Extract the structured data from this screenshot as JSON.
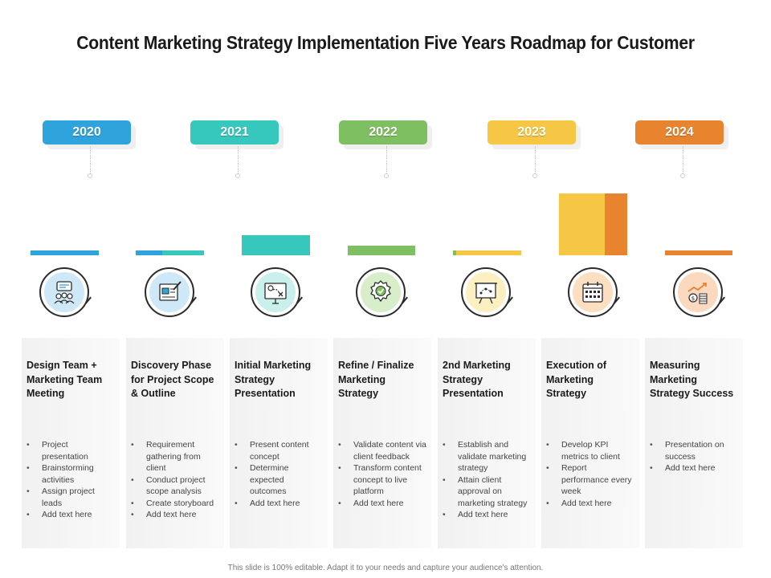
{
  "title": "Content Marketing Strategy Implementation Five Years Roadmap for Customer",
  "footer": "This slide is 100% editable. Adapt it to your needs and capture your audience's attention.",
  "years": [
    {
      "label": "2020",
      "color": "#2fa4dc"
    },
    {
      "label": "2021",
      "color": "#36c7bd"
    },
    {
      "label": "2022",
      "color": "#7ec061"
    },
    {
      "label": "2023",
      "color": "#f6c744"
    },
    {
      "label": "2024",
      "color": "#e8832e"
    }
  ],
  "steps": [
    {
      "icon": "team-meeting-icon",
      "title": "Design Team + Marketing Team Meeting",
      "bullets": [
        "Project presentation",
        "Brainstorming activities",
        "Assign project leads",
        "Add text here"
      ]
    },
    {
      "icon": "blueprint-pencil-icon",
      "title": "Discovery Phase for Project Scope & Outline",
      "bullets": [
        "Requirement gathering from client",
        "Conduct project scope analysis",
        "Create storyboard",
        "Add text here"
      ]
    },
    {
      "icon": "strategy-board-icon",
      "title": "Initial Marketing Strategy Presentation",
      "bullets": [
        "Present content concept",
        "Determine expected outcomes",
        "Add text here"
      ]
    },
    {
      "icon": "approval-badge-icon",
      "title": "Refine / Finalize Marketing Strategy",
      "bullets": [
        "Validate content via client feedback",
        "Transform content concept to live platform",
        "Add text here"
      ]
    },
    {
      "icon": "presentation-board-icon",
      "title": "2nd Marketing Strategy Presentation",
      "bullets": [
        "Establish and validate marketing strategy",
        "Attain client approval on marketing strategy",
        "Add text here"
      ]
    },
    {
      "icon": "calendar-icon",
      "title": "Execution of Marketing Strategy",
      "bullets": [
        "Develop KPI metrics to client",
        "Report performance every week",
        "Add text here"
      ]
    },
    {
      "icon": "growth-coins-icon",
      "title": "Measuring Marketing Strategy Success",
      "bullets": [
        "Presentation on success",
        "Add text here"
      ]
    }
  ]
}
